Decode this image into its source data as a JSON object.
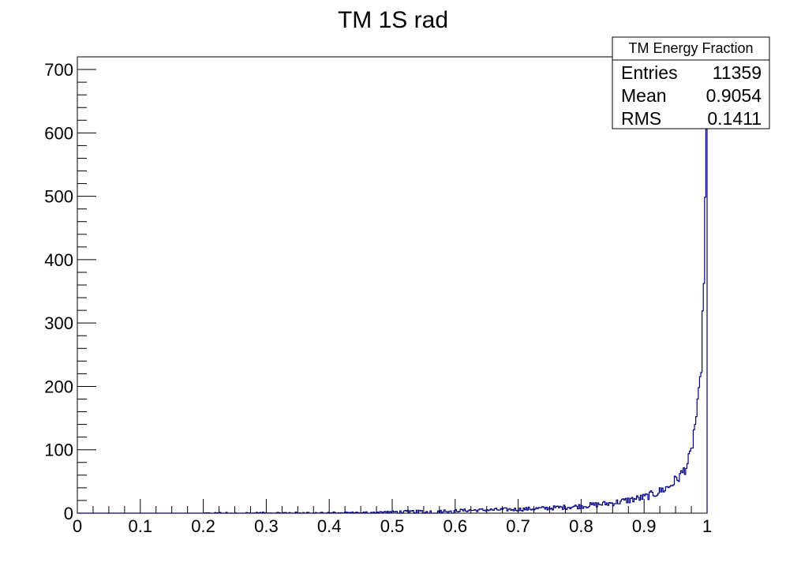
{
  "chart_data": {
    "type": "histogram",
    "title": "TM 1S rad",
    "xlim": [
      0,
      1
    ],
    "ylim": [
      0,
      720
    ],
    "x_ticks": [
      0,
      0.1,
      0.2,
      0.3,
      0.4,
      0.5,
      0.6,
      0.7,
      0.8,
      0.9,
      1
    ],
    "x_tick_labels": [
      "0",
      "0.1",
      "0.2",
      "0.3",
      "0.4",
      "0.5",
      "0.6",
      "0.7",
      "0.8",
      "0.9",
      "1"
    ],
    "y_ticks": [
      0,
      100,
      200,
      300,
      400,
      500,
      600,
      700
    ],
    "y_tick_labels": [
      "0",
      "100",
      "200",
      "300",
      "400",
      "500",
      "600",
      "700"
    ],
    "line_color": "#000080",
    "series": [
      {
        "x": [
          0.45,
          0.5,
          0.55,
          0.6,
          0.65,
          0.7,
          0.75,
          0.8,
          0.85,
          0.9,
          0.92,
          0.94,
          0.95,
          0.96,
          0.97,
          0.975,
          0.98,
          0.985,
          0.99,
          0.993,
          0.996,
          0.998,
          1.0
        ],
        "values": [
          1,
          2,
          3,
          4,
          5,
          6,
          8,
          11,
          16,
          25,
          32,
          42,
          52,
          62,
          80,
          95,
          135,
          165,
          210,
          300,
          420,
          560,
          720
        ]
      }
    ],
    "stats_box": {
      "title": "TM Energy Fraction",
      "rows": [
        {
          "label": "Entries",
          "value": "11359"
        },
        {
          "label": "Mean",
          "value": "0.9054"
        },
        {
          "label": "RMS",
          "value": "0.1411"
        }
      ]
    }
  }
}
